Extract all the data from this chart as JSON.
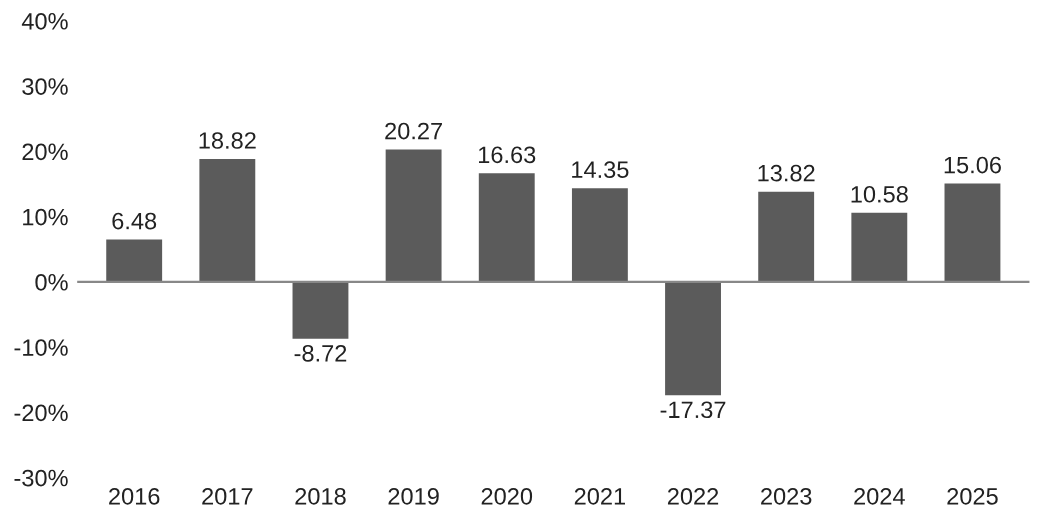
{
  "chart_data": {
    "type": "bar",
    "categories": [
      "2016",
      "2017",
      "2018",
      "2019",
      "2020",
      "2021",
      "2022",
      "2023",
      "2024",
      "2025"
    ],
    "values": [
      6.48,
      18.82,
      -8.72,
      20.27,
      16.63,
      14.35,
      -17.37,
      13.82,
      10.58,
      15.06
    ],
    "color": "#5b5b5b",
    "ylim": [
      -30,
      40
    ],
    "yticks": [
      {
        "value": -30,
        "label": "-30%"
      },
      {
        "value": -20,
        "label": "-20%"
      },
      {
        "value": -10,
        "label": "-10%"
      },
      {
        "value": 0,
        "label": "0%"
      },
      {
        "value": 10,
        "label": "10%"
      },
      {
        "value": 20,
        "label": "20%"
      },
      {
        "value": 30,
        "label": "30%"
      },
      {
        "value": 40,
        "label": "40%"
      }
    ],
    "data_labels": true,
    "legend": false
  }
}
